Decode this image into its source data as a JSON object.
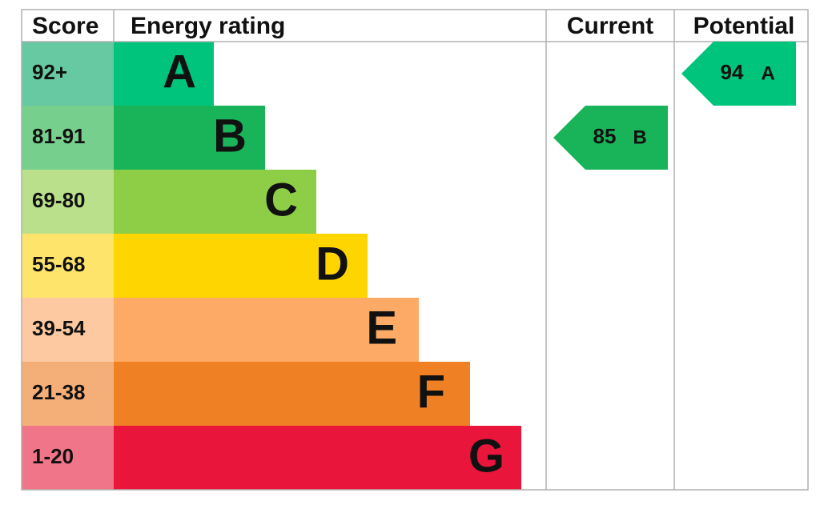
{
  "header": {
    "score": "Score",
    "rating": "Energy rating",
    "current": "Current",
    "potential": "Potential"
  },
  "bands": [
    {
      "score": "92+",
      "letter": "A"
    },
    {
      "score": "81-91",
      "letter": "B"
    },
    {
      "score": "69-80",
      "letter": "C"
    },
    {
      "score": "55-68",
      "letter": "D"
    },
    {
      "score": "39-54",
      "letter": "E"
    },
    {
      "score": "21-38",
      "letter": "F"
    },
    {
      "score": "1-20",
      "letter": "G"
    }
  ],
  "current": {
    "score": "85",
    "letter": "B"
  },
  "potential": {
    "score": "94",
    "letter": "A"
  }
}
